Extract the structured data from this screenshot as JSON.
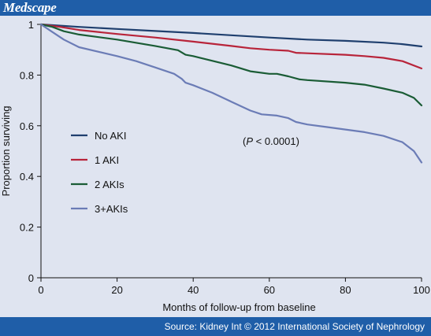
{
  "header": {
    "brand": "Medscape"
  },
  "footer": {
    "source": "Source: Kidney Int © 2012 International Society of Nephrology"
  },
  "chart_data": {
    "type": "line",
    "title": "",
    "xlabel": "Months of follow-up from baseline",
    "ylabel": "Proportion surviving",
    "xlim": [
      0,
      100
    ],
    "ylim": [
      0,
      1
    ],
    "x_ticks": [
      0,
      20,
      40,
      60,
      80,
      100
    ],
    "y_ticks": [
      0,
      0.2,
      0.4,
      0.6,
      0.8,
      1
    ],
    "y_tick_labels": [
      "0",
      "0.2",
      "0.4",
      "0.6",
      "0.8",
      "1"
    ],
    "grid": false,
    "legend_position": "left-center",
    "annotation": {
      "prefix": "(",
      "italic": "P",
      "suffix": " < 0.0001)"
    },
    "series": [
      {
        "name": "No AKI",
        "color": "#1f3f6e",
        "points": [
          [
            0,
            1
          ],
          [
            5,
            0.995
          ],
          [
            10,
            0.99
          ],
          [
            20,
            0.982
          ],
          [
            30,
            0.974
          ],
          [
            40,
            0.966
          ],
          [
            50,
            0.957
          ],
          [
            60,
            0.948
          ],
          [
            70,
            0.94
          ],
          [
            80,
            0.935
          ],
          [
            90,
            0.928
          ],
          [
            95,
            0.922
          ],
          [
            100,
            0.913
          ]
        ]
      },
      {
        "name": "1 AKI",
        "color": "#b8243a",
        "points": [
          [
            0,
            1
          ],
          [
            5,
            0.99
          ],
          [
            10,
            0.978
          ],
          [
            20,
            0.962
          ],
          [
            30,
            0.948
          ],
          [
            40,
            0.932
          ],
          [
            50,
            0.915
          ],
          [
            55,
            0.906
          ],
          [
            60,
            0.9
          ],
          [
            65,
            0.896
          ],
          [
            67,
            0.888
          ],
          [
            70,
            0.886
          ],
          [
            80,
            0.88
          ],
          [
            85,
            0.875
          ],
          [
            90,
            0.868
          ],
          [
            95,
            0.855
          ],
          [
            100,
            0.826
          ]
        ]
      },
      {
        "name": "2 AKIs",
        "color": "#1a5c35",
        "points": [
          [
            0,
            1
          ],
          [
            3,
            0.99
          ],
          [
            6,
            0.973
          ],
          [
            10,
            0.96
          ],
          [
            20,
            0.94
          ],
          [
            30,
            0.915
          ],
          [
            36,
            0.898
          ],
          [
            38,
            0.88
          ],
          [
            40,
            0.875
          ],
          [
            50,
            0.838
          ],
          [
            55,
            0.815
          ],
          [
            60,
            0.805
          ],
          [
            62,
            0.805
          ],
          [
            65,
            0.795
          ],
          [
            68,
            0.783
          ],
          [
            70,
            0.78
          ],
          [
            80,
            0.77
          ],
          [
            85,
            0.762
          ],
          [
            90,
            0.747
          ],
          [
            95,
            0.73
          ],
          [
            98,
            0.71
          ],
          [
            100,
            0.68
          ]
        ]
      },
      {
        "name": "3+AKIs",
        "color": "#6b7cb6",
        "points": [
          [
            0,
            1
          ],
          [
            3,
            0.97
          ],
          [
            6,
            0.94
          ],
          [
            10,
            0.91
          ],
          [
            20,
            0.875
          ],
          [
            25,
            0.855
          ],
          [
            30,
            0.83
          ],
          [
            35,
            0.805
          ],
          [
            37,
            0.785
          ],
          [
            38,
            0.77
          ],
          [
            40,
            0.76
          ],
          [
            45,
            0.73
          ],
          [
            50,
            0.695
          ],
          [
            55,
            0.66
          ],
          [
            58,
            0.645
          ],
          [
            62,
            0.64
          ],
          [
            65,
            0.63
          ],
          [
            67,
            0.615
          ],
          [
            70,
            0.605
          ],
          [
            75,
            0.595
          ],
          [
            80,
            0.585
          ],
          [
            85,
            0.575
          ],
          [
            90,
            0.56
          ],
          [
            95,
            0.535
          ],
          [
            98,
            0.5
          ],
          [
            100,
            0.455
          ]
        ]
      }
    ]
  }
}
